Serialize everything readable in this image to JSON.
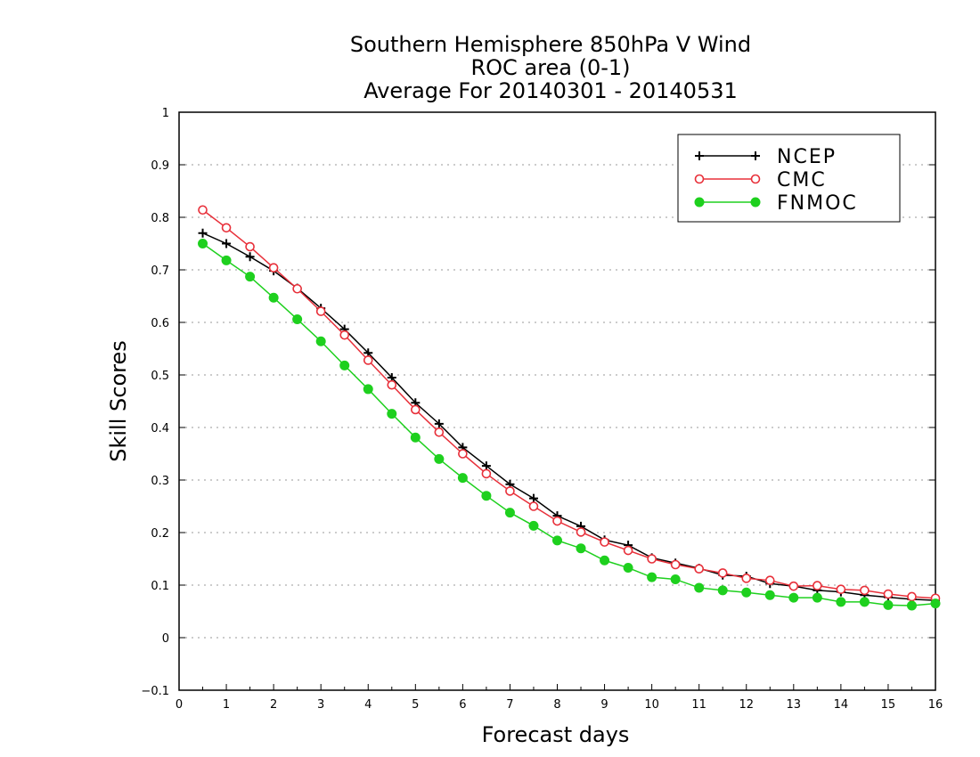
{
  "chart_data": {
    "type": "line",
    "title": [
      "Southern Hemisphere 850hPa V Wind",
      "ROC area (0-1)",
      "Average For 20140301 - 20140531"
    ],
    "xlabel": "Forecast days",
    "ylabel": "Skill Scores",
    "xlim": [
      0,
      16
    ],
    "ylim": [
      -0.1,
      1
    ],
    "xticks": [
      0,
      1,
      2,
      3,
      4,
      5,
      6,
      7,
      8,
      9,
      10,
      11,
      12,
      13,
      14,
      15,
      16
    ],
    "yticks": [
      -0.1,
      0,
      0.1,
      0.2,
      0.3,
      0.4,
      0.5,
      0.6,
      0.7,
      0.8,
      0.9,
      1
    ],
    "ytick_labels": [
      "−0.1",
      "0",
      "0.1",
      "0.2",
      "0.3",
      "0.4",
      "0.5",
      "0.6",
      "0.7",
      "0.8",
      "0.9",
      "1"
    ],
    "grid": true,
    "legend_position": "top-right",
    "x": [
      0.5,
      1,
      1.5,
      2,
      2.5,
      3,
      3.5,
      4,
      4.5,
      5,
      5.5,
      6,
      6.5,
      7,
      7.5,
      8,
      8.5,
      9,
      9.5,
      10,
      10.5,
      11,
      11.5,
      12,
      12.5,
      13,
      13.5,
      14,
      14.5,
      15,
      15.5,
      16
    ],
    "series": [
      {
        "name": "NCEP",
        "color": "#000000",
        "marker": "plus",
        "values": [
          0.77,
          0.75,
          0.725,
          0.698,
          0.665,
          0.627,
          0.587,
          0.542,
          0.495,
          0.447,
          0.407,
          0.362,
          0.327,
          0.292,
          0.265,
          0.232,
          0.212,
          0.186,
          0.176,
          0.152,
          0.142,
          0.132,
          0.119,
          0.117,
          0.103,
          0.098,
          0.09,
          0.087,
          0.081,
          0.077,
          0.073,
          0.071
        ]
      },
      {
        "name": "CMC",
        "color": "#e8303a",
        "marker": "open-circle",
        "values": [
          0.814,
          0.78,
          0.744,
          0.704,
          0.664,
          0.621,
          0.576,
          0.528,
          0.481,
          0.434,
          0.391,
          0.35,
          0.312,
          0.279,
          0.25,
          0.222,
          0.201,
          0.182,
          0.166,
          0.15,
          0.139,
          0.131,
          0.123,
          0.113,
          0.109,
          0.098,
          0.099,
          0.092,
          0.09,
          0.083,
          0.078,
          0.075
        ]
      },
      {
        "name": "FNMOC",
        "color": "#1ed01e",
        "marker": "filled-circle",
        "values": [
          0.75,
          0.718,
          0.687,
          0.647,
          0.606,
          0.564,
          0.518,
          0.473,
          0.426,
          0.381,
          0.34,
          0.304,
          0.27,
          0.238,
          0.213,
          0.185,
          0.17,
          0.147,
          0.133,
          0.115,
          0.111,
          0.095,
          0.09,
          0.086,
          0.081,
          0.076,
          0.076,
          0.068,
          0.068,
          0.062,
          0.061,
          0.065
        ]
      }
    ]
  }
}
